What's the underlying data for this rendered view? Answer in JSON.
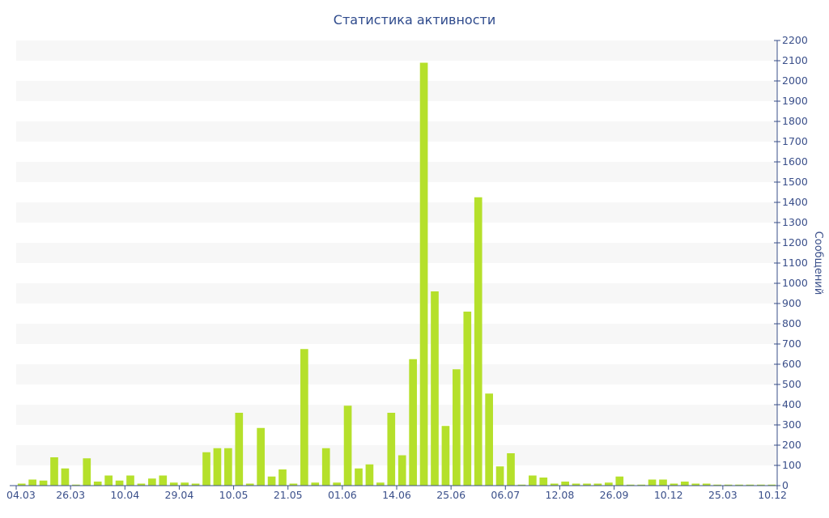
{
  "chart_data": {
    "type": "bar",
    "title": "Статистика активности",
    "ylabel": "Сообщений",
    "xlabel": "",
    "ylim": [
      0,
      2200
    ],
    "y_ticks": [
      0,
      100,
      200,
      300,
      400,
      500,
      600,
      700,
      800,
      900,
      1000,
      1100,
      1200,
      1300,
      1400,
      1500,
      1600,
      1700,
      1800,
      1900,
      2000,
      2100,
      2200
    ],
    "x_tick_labels": [
      "04.03",
      "26.03",
      "10.04",
      "29.04",
      "10.05",
      "21.05",
      "01.06",
      "14.06",
      "25.06",
      "06.07",
      "12.08",
      "26.09",
      "10.12",
      "25.03",
      "10.12"
    ],
    "grid": "horizontal bands",
    "y_axis_position": "right",
    "colors": {
      "bar": "#b5e02b",
      "band": "#f7f7f7",
      "axis": "#3a4f8a",
      "title": "#2e4a8c"
    },
    "values": [
      10,
      30,
      25,
      140,
      85,
      5,
      135,
      20,
      50,
      25,
      50,
      10,
      35,
      50,
      15,
      15,
      10,
      165,
      185,
      185,
      360,
      10,
      285,
      45,
      80,
      10,
      675,
      15,
      185,
      15,
      395,
      85,
      105,
      15,
      360,
      150,
      625,
      2090,
      960,
      295,
      575,
      860,
      1425,
      455,
      95,
      160,
      5,
      50,
      40,
      10,
      20,
      10,
      10,
      10,
      15,
      45,
      5,
      5,
      30,
      30,
      10,
      20,
      10,
      10,
      5,
      5,
      5,
      5,
      5,
      5
    ]
  }
}
